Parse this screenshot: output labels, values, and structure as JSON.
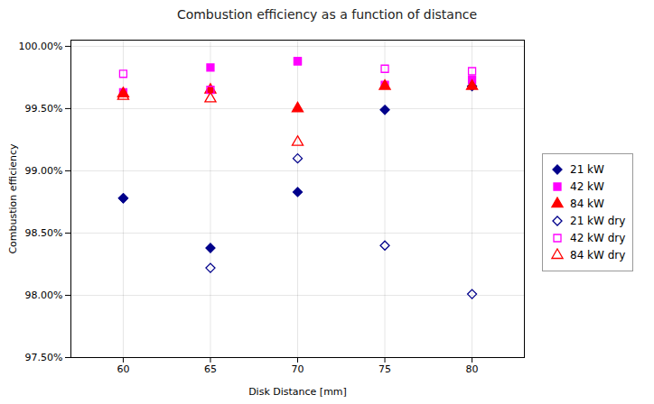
{
  "chart_data": {
    "type": "scatter",
    "title": "Combustion efficiency as a function of distance",
    "xlabel": "Disk Distance [mm]",
    "ylabel": "Combustion efficiency",
    "x": [
      60,
      65,
      70,
      75,
      80
    ],
    "xlim": [
      57,
      83
    ],
    "xticks": [
      60,
      65,
      70,
      75,
      80
    ],
    "ylim": [
      0.975,
      1.0005
    ],
    "yticks": [
      {
        "value": 0.975,
        "label": "97.50%"
      },
      {
        "value": 0.98,
        "label": "98.00%"
      },
      {
        "value": 0.985,
        "label": "98.50%"
      },
      {
        "value": 0.99,
        "label": "99.00%"
      },
      {
        "value": 0.995,
        "label": "99.50%"
      },
      {
        "value": 1.0,
        "label": "100.00%"
      }
    ],
    "grid": true,
    "legend": "right",
    "series": [
      {
        "name": "21 kW",
        "color": "#00008B",
        "marker": "diamond",
        "values": [
          0.9878,
          0.9838,
          0.9883,
          0.9949,
          0.9968
        ]
      },
      {
        "name": "42 kW",
        "color": "#FF00FF",
        "marker": "square",
        "values": [
          0.9963,
          0.9983,
          0.9988,
          0.9969,
          0.9973
        ]
      },
      {
        "name": "84 kW",
        "color": "#FF0000",
        "marker": "triangle",
        "values": [
          0.9962,
          0.9965,
          0.995,
          0.9968,
          0.9968
        ]
      },
      {
        "name": "21 kW dry",
        "color": "#00008B",
        "marker": "diamond_open",
        "values": [
          0.9878,
          0.9822,
          0.991,
          0.984,
          0.9801
        ]
      },
      {
        "name": "42 kW dry",
        "color": "#FF00FF",
        "marker": "square_open",
        "values": [
          0.9978,
          0.9965,
          0.9988,
          0.9982,
          0.998
        ]
      },
      {
        "name": "84 kW dry",
        "color": "#FF0000",
        "marker": "triangle_open",
        "values": [
          0.996,
          0.9958,
          0.9923,
          null,
          null
        ]
      }
    ]
  }
}
